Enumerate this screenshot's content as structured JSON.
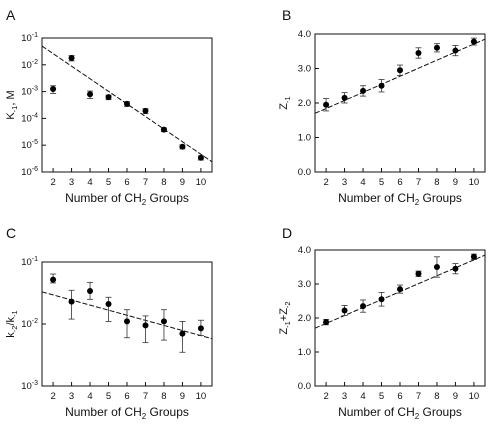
{
  "chart_data": [
    {
      "panel": "A",
      "type": "scatter",
      "xlabel_parts": [
        "Number of CH",
        "2",
        " Groups"
      ],
      "ylabel_parts": [
        "K",
        "-1",
        ", M"
      ],
      "x_ticks": [
        2,
        3,
        4,
        5,
        6,
        7,
        8,
        9,
        10
      ],
      "y_scale": "log",
      "y_ticks": [
        "10-1",
        "10-2",
        "10-3",
        "10-4",
        "10-5",
        "10-6"
      ],
      "ylim": [
        1e-06,
        0.1
      ],
      "xlim": [
        1.4,
        10.6
      ],
      "series": [
        {
          "x": [
            2,
            3,
            4,
            5,
            6,
            7,
            8,
            9,
            10
          ],
          "y": [
            0.00125,
            0.018,
            0.0008,
            0.00062,
            0.00035,
            0.00019,
            3.8e-05,
            8.8e-06,
            3.4e-06
          ],
          "err": [
            0.0004,
            0.004,
            0.00025,
            0.00012,
            7e-05,
            4e-05,
            6e-06,
            1.5e-06,
            6e-07
          ]
        }
      ],
      "fit_line": {
        "x": [
          1.4,
          10.6
        ],
        "y": [
          0.05,
          2.4e-06
        ]
      }
    },
    {
      "panel": "B",
      "type": "scatter",
      "xlabel_parts": [
        "Number of CH",
        "2",
        " Groups"
      ],
      "ylabel_parts": [
        "Z",
        "-1",
        ""
      ],
      "x_ticks": [
        2,
        3,
        4,
        5,
        6,
        7,
        8,
        9,
        10
      ],
      "y_scale": "linear",
      "y_ticks": [
        "0.0",
        "1.0",
        "2.0",
        "3.0",
        "4.0"
      ],
      "ylim": [
        0,
        4
      ],
      "xlim": [
        1.4,
        10.6
      ],
      "series": [
        {
          "x": [
            2,
            3,
            4,
            5,
            6,
            7,
            8,
            9,
            10
          ],
          "y": [
            1.95,
            2.15,
            2.35,
            2.5,
            2.95,
            3.45,
            3.6,
            3.52,
            3.78
          ],
          "err": [
            0.18,
            0.15,
            0.15,
            0.18,
            0.15,
            0.15,
            0.12,
            0.15,
            0.1
          ]
        }
      ],
      "fit_line": {
        "x": [
          1.4,
          10.6
        ],
        "y": [
          1.7,
          3.85
        ]
      }
    },
    {
      "panel": "C",
      "type": "scatter",
      "xlabel_parts": [
        "Number of CH",
        "2",
        " Groups"
      ],
      "ylabel_parts": [
        "k",
        "-2",
        "/k",
        "-1",
        ""
      ],
      "x_ticks": [
        2,
        3,
        4,
        5,
        6,
        7,
        8,
        9,
        10
      ],
      "y_scale": "log",
      "y_ticks": [
        "10-1",
        "10-2",
        "10-3"
      ],
      "ylim": [
        0.001,
        0.1
      ],
      "xlim": [
        1.4,
        10.6
      ],
      "series": [
        {
          "x": [
            2,
            3,
            4,
            5,
            6,
            7,
            8,
            9,
            10
          ],
          "y": [
            0.052,
            0.023,
            0.034,
            0.021,
            0.011,
            0.0095,
            0.011,
            0.007,
            0.0085
          ],
          "err_up": [
            0.012,
            0.012,
            0.013,
            0.006,
            0.006,
            0.004,
            0.006,
            0.004,
            0.003
          ],
          "err_down": [
            0.006,
            0.011,
            0.009,
            0.01,
            0.005,
            0.0045,
            0.0055,
            0.0035,
            0.002
          ]
        }
      ],
      "fit_line": {
        "x": [
          1.4,
          10.6
        ],
        "y": [
          0.033,
          0.0058
        ]
      }
    },
    {
      "panel": "D",
      "type": "scatter",
      "xlabel_parts": [
        "Number of CH",
        "2",
        " Groups"
      ],
      "ylabel_parts": [
        "Z",
        "-1",
        "+Z",
        "-2",
        ""
      ],
      "x_ticks": [
        2,
        3,
        4,
        5,
        6,
        7,
        8,
        9,
        10
      ],
      "y_scale": "linear",
      "y_ticks": [
        "0.0",
        "1.0",
        "2.0",
        "3.0",
        "4.0"
      ],
      "ylim": [
        0,
        4
      ],
      "xlim": [
        1.4,
        10.6
      ],
      "series": [
        {
          "x": [
            2,
            3,
            4,
            5,
            6,
            7,
            8,
            9,
            10
          ],
          "y": [
            1.88,
            2.22,
            2.35,
            2.55,
            2.85,
            3.3,
            3.5,
            3.45,
            3.8
          ],
          "err": [
            0.08,
            0.15,
            0.18,
            0.2,
            0.12,
            0.08,
            0.3,
            0.15,
            0.08
          ]
        }
      ],
      "fit_line": {
        "x": [
          1.4,
          10.6
        ],
        "y": [
          1.7,
          3.85
        ]
      }
    }
  ]
}
